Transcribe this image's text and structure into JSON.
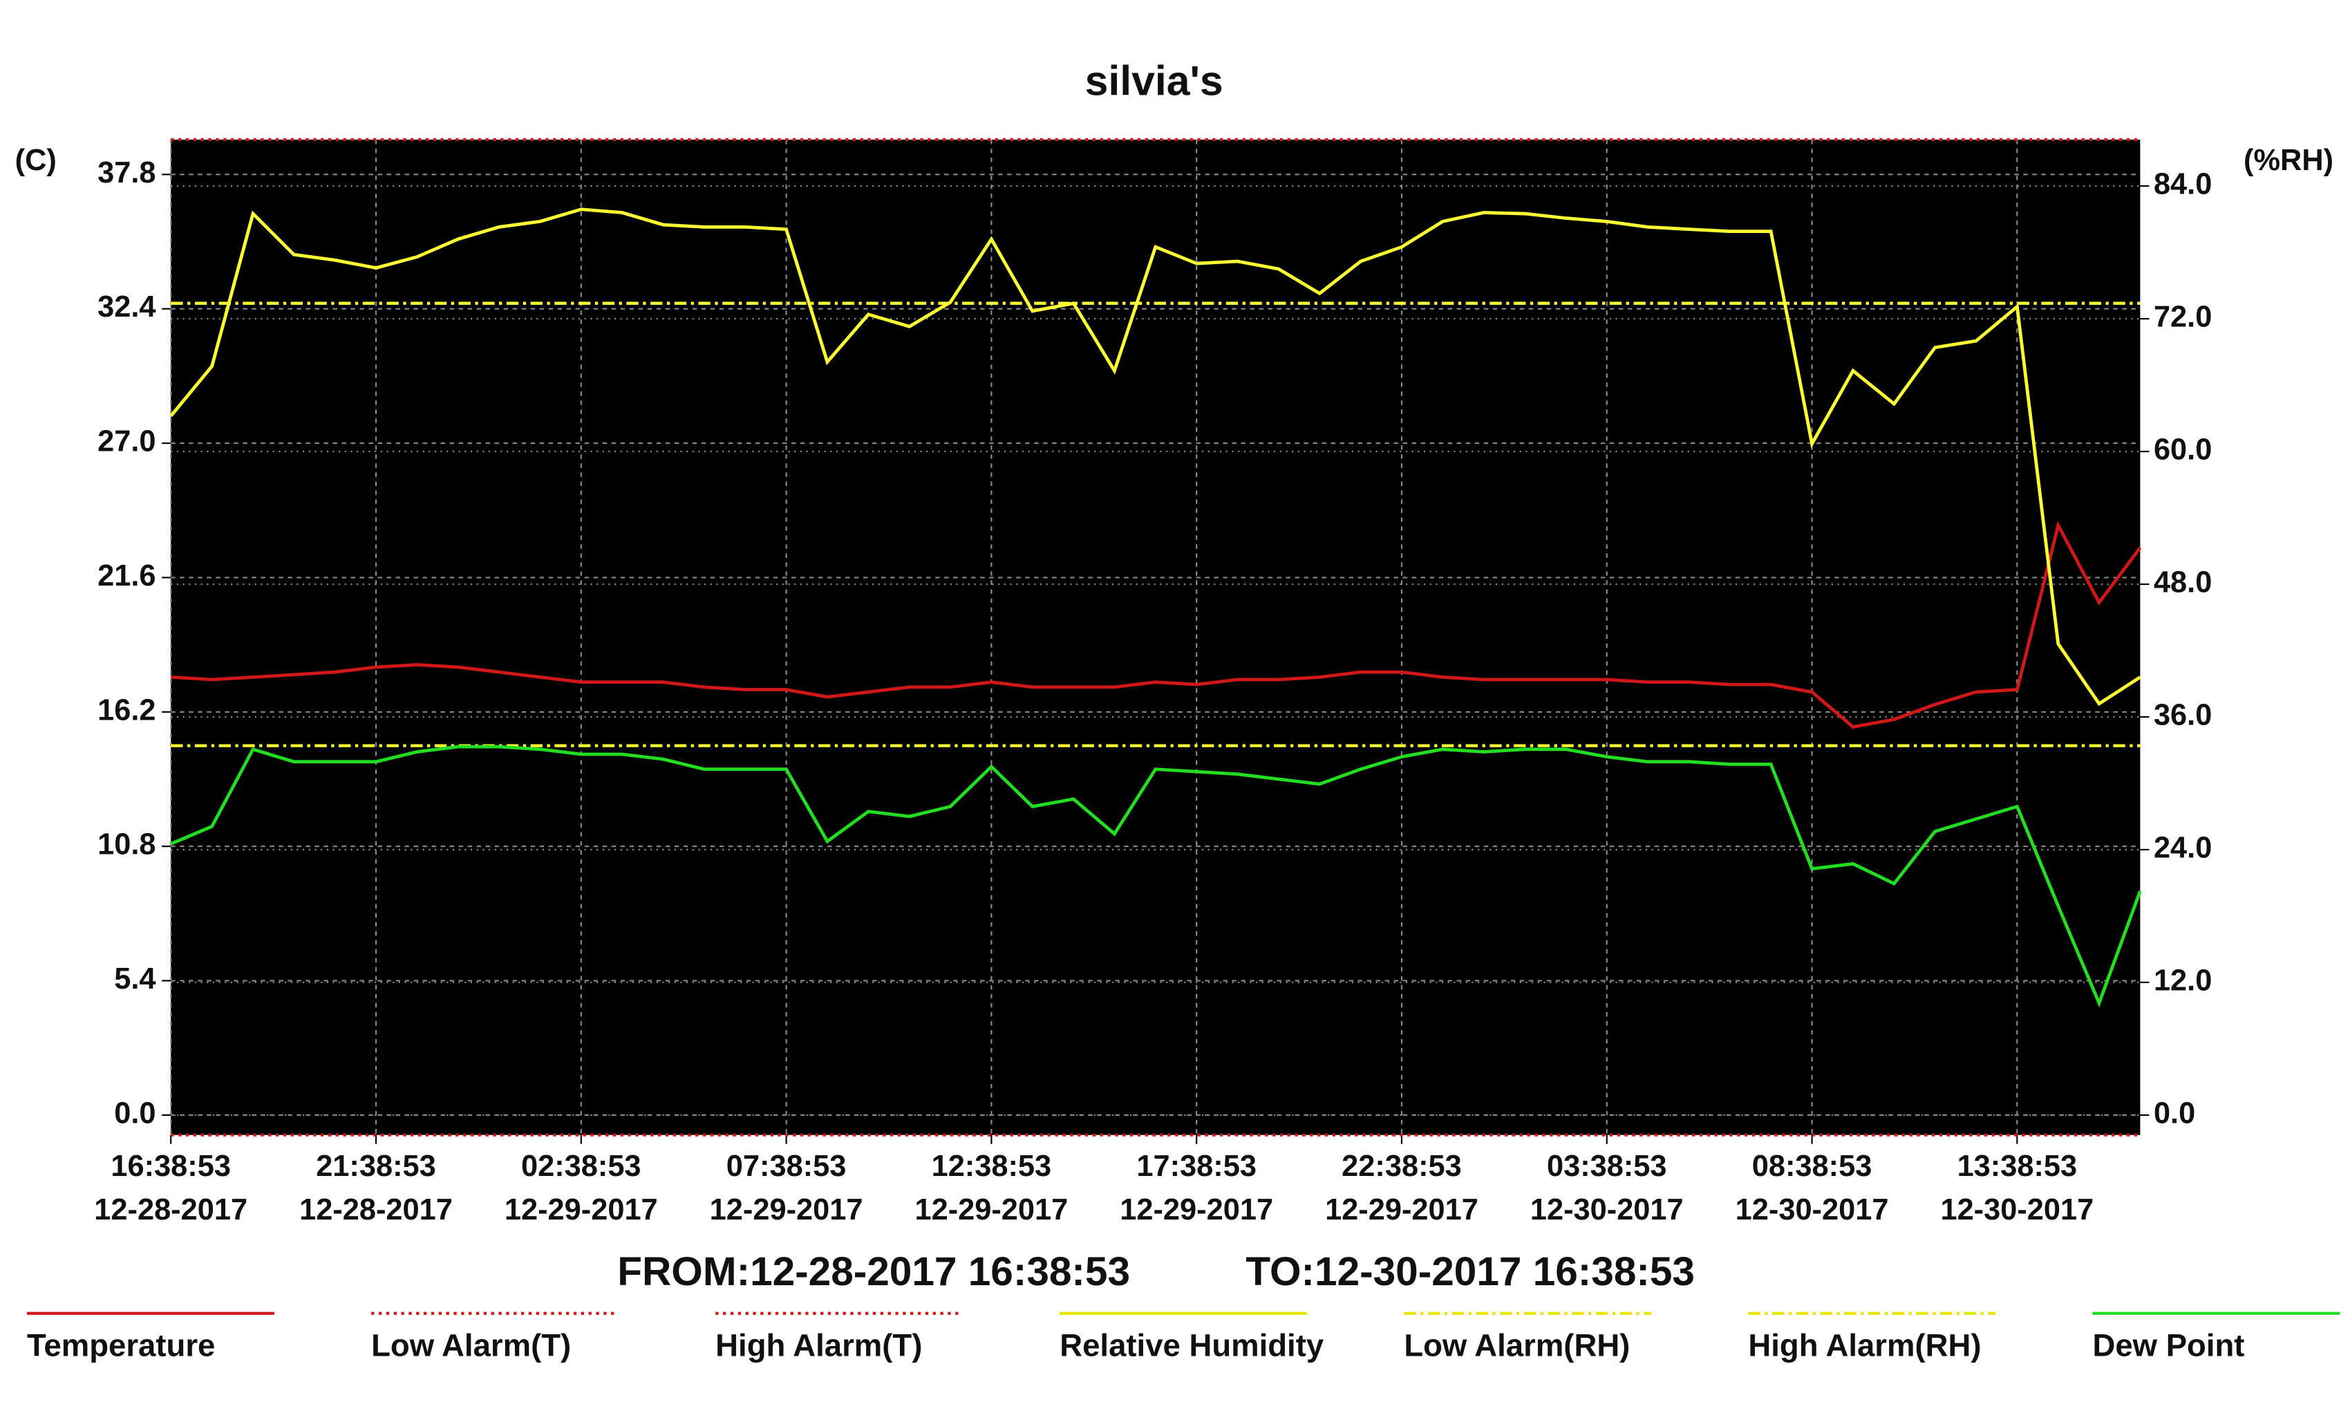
{
  "chart_data": {
    "type": "line",
    "title": "silvia's",
    "y_label": "(C)",
    "y2_label": "(%RH)",
    "from_label": "FROM:12-28-2017 16:38:53",
    "to_label": "TO:12-30-2017 16:38:53",
    "x": [
      "12-28-2017 16:38:53",
      "12-28-2017 17:38:53",
      "12-28-2017 18:38:53",
      "12-28-2017 19:38:53",
      "12-28-2017 20:38:53",
      "12-28-2017 21:38:53",
      "12-28-2017 22:38:53",
      "12-28-2017 23:38:53",
      "12-29-2017 00:38:53",
      "12-29-2017 01:38:53",
      "12-29-2017 02:38:53",
      "12-29-2017 03:38:53",
      "12-29-2017 04:38:53",
      "12-29-2017 05:38:53",
      "12-29-2017 06:38:53",
      "12-29-2017 07:38:53",
      "12-29-2017 08:38:53",
      "12-29-2017 09:38:53",
      "12-29-2017 10:38:53",
      "12-29-2017 11:38:53",
      "12-29-2017 12:38:53",
      "12-29-2017 13:38:53",
      "12-29-2017 14:38:53",
      "12-29-2017 15:38:53",
      "12-29-2017 16:38:53",
      "12-29-2017 17:38:53",
      "12-29-2017 18:38:53",
      "12-29-2017 19:38:53",
      "12-29-2017 20:38:53",
      "12-29-2017 21:38:53",
      "12-29-2017 22:38:53",
      "12-29-2017 23:38:53",
      "12-30-2017 00:38:53",
      "12-30-2017 01:38:53",
      "12-30-2017 02:38:53",
      "12-30-2017 03:38:53",
      "12-30-2017 04:38:53",
      "12-30-2017 05:38:53",
      "12-30-2017 06:38:53",
      "12-30-2017 07:38:53",
      "12-30-2017 08:38:53",
      "12-30-2017 09:38:53",
      "12-30-2017 10:38:53",
      "12-30-2017 11:38:53",
      "12-30-2017 12:38:53",
      "12-30-2017 13:38:53",
      "12-30-2017 14:38:53",
      "12-30-2017 15:38:53",
      "12-30-2017 16:38:53"
    ],
    "xlim": [
      "12-28-2017 16:38:53",
      "12-30-2017 16:38:53"
    ],
    "xticks": [
      {
        "value": "12-28-2017 16:38:53",
        "label": [
          "16:38:53",
          "12-28-2017"
        ]
      },
      {
        "value": "12-28-2017 21:38:53",
        "label": [
          "21:38:53",
          "12-28-2017"
        ]
      },
      {
        "value": "12-29-2017 02:38:53",
        "label": [
          "02:38:53",
          "12-29-2017"
        ]
      },
      {
        "value": "12-29-2017 07:38:53",
        "label": [
          "07:38:53",
          "12-29-2017"
        ]
      },
      {
        "value": "12-29-2017 12:38:53",
        "label": [
          "12:38:53",
          "12-29-2017"
        ]
      },
      {
        "value": "12-29-2017 17:38:53",
        "label": [
          "17:38:53",
          "12-29-2017"
        ]
      },
      {
        "value": "12-29-2017 22:38:53",
        "label": [
          "22:38:53",
          "12-29-2017"
        ]
      },
      {
        "value": "12-30-2017 03:38:53",
        "label": [
          "03:38:53",
          "12-30-2017"
        ]
      },
      {
        "value": "12-30-2017 08:38:53",
        "label": [
          "08:38:53",
          "12-30-2017"
        ]
      },
      {
        "value": "12-30-2017 13:38:53",
        "label": [
          "13:38:53",
          "12-30-2017"
        ]
      }
    ],
    "ylim": [
      -0.8,
      39.2
    ],
    "yticks": [
      {
        "value": 0,
        "label": "0.0"
      },
      5.4,
      10.8,
      16.2,
      21.6,
      {
        "value": 27,
        "label": "27.0"
      },
      32.4,
      37.8
    ],
    "y2lim": [
      -1.8,
      88.2
    ],
    "y2ticks": [
      {
        "value": 0,
        "label": "0.0"
      },
      {
        "value": 12,
        "label": "12.0"
      },
      {
        "value": 24,
        "label": "24.0"
      },
      {
        "value": 36,
        "label": "36.0"
      },
      {
        "value": 48,
        "label": "48.0"
      },
      {
        "value": 60,
        "label": "60.0"
      },
      {
        "value": 72,
        "label": "72.0"
      },
      {
        "value": 84,
        "label": "84.0"
      }
    ],
    "grid": true,
    "legend": "bottom",
    "series": [
      {
        "name": "Temperature",
        "color": "#d01818",
        "axis": "y",
        "dash": "solid",
        "values": [
          17.6,
          17.5,
          17.6,
          17.7,
          17.8,
          18.0,
          18.1,
          18.0,
          17.8,
          17.6,
          17.4,
          17.4,
          17.4,
          17.2,
          17.1,
          17.1,
          16.8,
          17.0,
          17.2,
          17.2,
          17.4,
          17.2,
          17.2,
          17.2,
          17.4,
          17.3,
          17.5,
          17.5,
          17.6,
          17.8,
          17.8,
          17.6,
          17.5,
          17.5,
          17.5,
          17.5,
          17.4,
          17.4,
          17.3,
          17.3,
          17.0,
          15.6,
          15.9,
          16.5,
          17.0,
          17.1,
          23.7,
          20.6,
          22.8
        ]
      },
      {
        "name": "Low Alarm(T)",
        "color": "#d01818",
        "axis": "y",
        "dash": "dotted",
        "value": -0.8
      },
      {
        "name": "High Alarm(T)",
        "color": "#d01818",
        "axis": "y",
        "dash": "dotted",
        "value": 39.2
      },
      {
        "name": "Relative Humidity",
        "color": "#ffff33",
        "axis": "y2",
        "dash": "solid",
        "values": [
          63.2,
          67.7,
          81.5,
          77.8,
          77.3,
          76.6,
          77.6,
          79.2,
          80.3,
          80.8,
          81.9,
          81.6,
          80.5,
          80.3,
          80.3,
          80.1,
          68.1,
          72.4,
          71.3,
          73.5,
          79.2,
          72.7,
          73.4,
          67.3,
          78.5,
          77.0,
          77.2,
          76.5,
          74.3,
          77.2,
          78.5,
          80.8,
          81.6,
          81.5,
          81.1,
          80.8,
          80.3,
          80.1,
          79.9,
          79.9,
          60.7,
          67.3,
          64.3,
          69.4,
          70.0,
          73.1,
          42.6,
          37.2,
          39.6
        ]
      },
      {
        "name": "Low Alarm(RH)",
        "color": "#ffff33",
        "axis": "y2",
        "dash": "dashdot",
        "value": 33.4
      },
      {
        "name": "High Alarm(RH)",
        "color": "#ffff33",
        "axis": "y2",
        "dash": "dashdot",
        "value": 73.4
      },
      {
        "name": "Dew Point",
        "color": "#22dd22",
        "axis": "y",
        "dash": "solid",
        "values": [
          10.9,
          11.6,
          14.7,
          14.2,
          14.2,
          14.2,
          14.6,
          14.8,
          14.8,
          14.7,
          14.5,
          14.5,
          14.3,
          13.9,
          13.9,
          13.9,
          11.0,
          12.2,
          12.0,
          12.4,
          14.0,
          12.4,
          12.7,
          11.3,
          13.9,
          13.8,
          13.7,
          13.5,
          13.3,
          13.9,
          14.4,
          14.7,
          14.6,
          14.7,
          14.7,
          14.4,
          14.2,
          14.2,
          14.1,
          14.1,
          9.9,
          10.1,
          9.3,
          11.4,
          11.9,
          12.4,
          8.4,
          4.5,
          9.0
        ]
      }
    ]
  }
}
